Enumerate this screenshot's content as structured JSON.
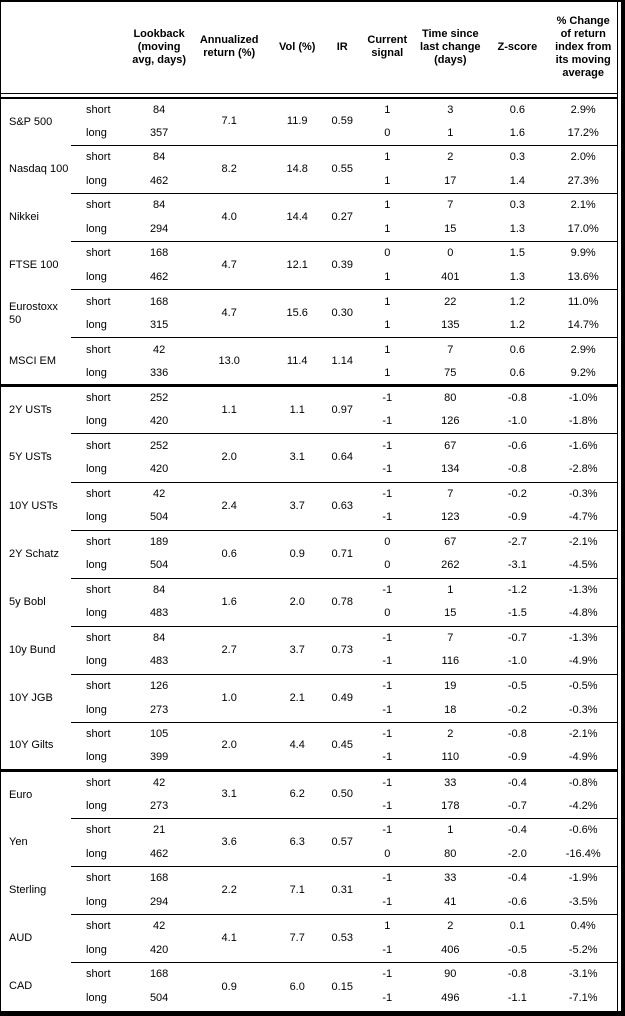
{
  "table": {
    "column_headers": [
      {
        "id": "asset",
        "label": ""
      },
      {
        "id": "horizon",
        "label": ""
      },
      {
        "id": "lookback",
        "label": "Lookback (moving avg, days)"
      },
      {
        "id": "annualized_return",
        "label": "Annualized return (%)"
      },
      {
        "id": "vol",
        "label": "Vol (%)"
      },
      {
        "id": "ir",
        "label": "IR"
      },
      {
        "id": "current_signal",
        "label": "Current signal"
      },
      {
        "id": "time_since",
        "label": "Time since last change (days)"
      },
      {
        "id": "zscore",
        "label": "Z-score"
      },
      {
        "id": "pct_change",
        "label": "% Change of return index from its moving average"
      }
    ],
    "sections": [
      {
        "name": "equities",
        "groups": [
          {
            "asset": "S&P 500",
            "annualized_return": "7.1",
            "vol": "11.9",
            "ir": "0.59",
            "rows": [
              {
                "horizon": "short",
                "lookback": "84",
                "signal": "1",
                "time_since": "3",
                "zscore": "0.6",
                "pct_change": "2.9%"
              },
              {
                "horizon": "long",
                "lookback": "357",
                "signal": "0",
                "time_since": "1",
                "zscore": "1.6",
                "pct_change": "17.2%"
              }
            ]
          },
          {
            "asset": "Nasdaq 100",
            "annualized_return": "8.2",
            "vol": "14.8",
            "ir": "0.55",
            "rows": [
              {
                "horizon": "short",
                "lookback": "84",
                "signal": "1",
                "time_since": "2",
                "zscore": "0.3",
                "pct_change": "2.0%"
              },
              {
                "horizon": "long",
                "lookback": "462",
                "signal": "1",
                "time_since": "17",
                "zscore": "1.4",
                "pct_change": "27.3%"
              }
            ]
          },
          {
            "asset": "Nikkei",
            "annualized_return": "4.0",
            "vol": "14.4",
            "ir": "0.27",
            "rows": [
              {
                "horizon": "short",
                "lookback": "84",
                "signal": "1",
                "time_since": "7",
                "zscore": "0.3",
                "pct_change": "2.1%"
              },
              {
                "horizon": "long",
                "lookback": "294",
                "signal": "1",
                "time_since": "15",
                "zscore": "1.3",
                "pct_change": "17.0%"
              }
            ]
          },
          {
            "asset": "FTSE 100",
            "annualized_return": "4.7",
            "vol": "12.1",
            "ir": "0.39",
            "rows": [
              {
                "horizon": "short",
                "lookback": "168",
                "signal": "0",
                "time_since": "0",
                "zscore": "1.5",
                "pct_change": "9.9%"
              },
              {
                "horizon": "long",
                "lookback": "462",
                "signal": "1",
                "time_since": "401",
                "zscore": "1.3",
                "pct_change": "13.6%"
              }
            ]
          },
          {
            "asset": "Eurostoxx 50",
            "annualized_return": "4.7",
            "vol": "15.6",
            "ir": "0.30",
            "rows": [
              {
                "horizon": "short",
                "lookback": "168",
                "signal": "1",
                "time_since": "22",
                "zscore": "1.2",
                "pct_change": "11.0%"
              },
              {
                "horizon": "long",
                "lookback": "315",
                "signal": "1",
                "time_since": "135",
                "zscore": "1.2",
                "pct_change": "14.7%"
              }
            ]
          },
          {
            "asset": "MSCI EM",
            "annualized_return": "13.0",
            "vol": "11.4",
            "ir": "1.14",
            "rows": [
              {
                "horizon": "short",
                "lookback": "42",
                "signal": "1",
                "time_since": "7",
                "zscore": "0.6",
                "pct_change": "2.9%"
              },
              {
                "horizon": "long",
                "lookback": "336",
                "signal": "1",
                "time_since": "75",
                "zscore": "0.6",
                "pct_change": "9.2%"
              }
            ]
          }
        ]
      },
      {
        "name": "bonds",
        "groups": [
          {
            "asset": "2Y USTs",
            "annualized_return": "1.1",
            "vol": "1.1",
            "ir": "0.97",
            "rows": [
              {
                "horizon": "short",
                "lookback": "252",
                "signal": "-1",
                "time_since": "80",
                "zscore": "-0.8",
                "pct_change": "-1.0%"
              },
              {
                "horizon": "long",
                "lookback": "420",
                "signal": "-1",
                "time_since": "126",
                "zscore": "-1.0",
                "pct_change": "-1.8%"
              }
            ]
          },
          {
            "asset": "5Y USTs",
            "annualized_return": "2.0",
            "vol": "3.1",
            "ir": "0.64",
            "rows": [
              {
                "horizon": "short",
                "lookback": "252",
                "signal": "-1",
                "time_since": "67",
                "zscore": "-0.6",
                "pct_change": "-1.6%"
              },
              {
                "horizon": "long",
                "lookback": "420",
                "signal": "-1",
                "time_since": "134",
                "zscore": "-0.8",
                "pct_change": "-2.8%"
              }
            ]
          },
          {
            "asset": "10Y USTs",
            "annualized_return": "2.4",
            "vol": "3.7",
            "ir": "0.63",
            "rows": [
              {
                "horizon": "short",
                "lookback": "42",
                "signal": "-1",
                "time_since": "7",
                "zscore": "-0.2",
                "pct_change": "-0.3%"
              },
              {
                "horizon": "long",
                "lookback": "504",
                "signal": "-1",
                "time_since": "123",
                "zscore": "-0.9",
                "pct_change": "-4.7%"
              }
            ]
          },
          {
            "asset": "2Y Schatz",
            "annualized_return": "0.6",
            "vol": "0.9",
            "ir": "0.71",
            "rows": [
              {
                "horizon": "short",
                "lookback": "189",
                "signal": "0",
                "time_since": "67",
                "zscore": "-2.7",
                "pct_change": "-2.1%"
              },
              {
                "horizon": "long",
                "lookback": "504",
                "signal": "0",
                "time_since": "262",
                "zscore": "-3.1",
                "pct_change": "-4.5%"
              }
            ]
          },
          {
            "asset": "5y Bobl",
            "annualized_return": "1.6",
            "vol": "2.0",
            "ir": "0.78",
            "rows": [
              {
                "horizon": "short",
                "lookback": "84",
                "signal": "-1",
                "time_since": "1",
                "zscore": "-1.2",
                "pct_change": "-1.3%"
              },
              {
                "horizon": "long",
                "lookback": "483",
                "signal": "0",
                "time_since": "15",
                "zscore": "-1.5",
                "pct_change": "-4.8%"
              }
            ]
          },
          {
            "asset": "10y Bund",
            "annualized_return": "2.7",
            "vol": "3.7",
            "ir": "0.73",
            "rows": [
              {
                "horizon": "short",
                "lookback": "84",
                "signal": "-1",
                "time_since": "7",
                "zscore": "-0.7",
                "pct_change": "-1.3%"
              },
              {
                "horizon": "long",
                "lookback": "483",
                "signal": "-1",
                "time_since": "116",
                "zscore": "-1.0",
                "pct_change": "-4.9%"
              }
            ]
          },
          {
            "asset": "10Y JGB",
            "annualized_return": "1.0",
            "vol": "2.1",
            "ir": "0.49",
            "rows": [
              {
                "horizon": "short",
                "lookback": "126",
                "signal": "-1",
                "time_since": "19",
                "zscore": "-0.5",
                "pct_change": "-0.5%"
              },
              {
                "horizon": "long",
                "lookback": "273",
                "signal": "-1",
                "time_since": "18",
                "zscore": "-0.2",
                "pct_change": "-0.3%"
              }
            ]
          },
          {
            "asset": "10Y Gilts",
            "annualized_return": "2.0",
            "vol": "4.4",
            "ir": "0.45",
            "rows": [
              {
                "horizon": "short",
                "lookback": "105",
                "signal": "-1",
                "time_since": "2",
                "zscore": "-0.8",
                "pct_change": "-2.1%"
              },
              {
                "horizon": "long",
                "lookback": "399",
                "signal": "-1",
                "time_since": "110",
                "zscore": "-0.9",
                "pct_change": "-4.9%"
              }
            ]
          }
        ]
      },
      {
        "name": "fx",
        "groups": [
          {
            "asset": "Euro",
            "annualized_return": "3.1",
            "vol": "6.2",
            "ir": "0.50",
            "rows": [
              {
                "horizon": "short",
                "lookback": "42",
                "signal": "-1",
                "time_since": "33",
                "zscore": "-0.4",
                "pct_change": "-0.8%"
              },
              {
                "horizon": "long",
                "lookback": "273",
                "signal": "-1",
                "time_since": "178",
                "zscore": "-0.7",
                "pct_change": "-4.2%"
              }
            ]
          },
          {
            "asset": "Yen",
            "annualized_return": "3.6",
            "vol": "6.3",
            "ir": "0.57",
            "rows": [
              {
                "horizon": "short",
                "lookback": "21",
                "signal": "-1",
                "time_since": "1",
                "zscore": "-0.4",
                "pct_change": "-0.6%"
              },
              {
                "horizon": "long",
                "lookback": "462",
                "signal": "0",
                "time_since": "80",
                "zscore": "-2.0",
                "pct_change": "-16.4%"
              }
            ]
          },
          {
            "asset": "Sterling",
            "annualized_return": "2.2",
            "vol": "7.1",
            "ir": "0.31",
            "rows": [
              {
                "horizon": "short",
                "lookback": "168",
                "signal": "-1",
                "time_since": "33",
                "zscore": "-0.4",
                "pct_change": "-1.9%"
              },
              {
                "horizon": "long",
                "lookback": "294",
                "signal": "-1",
                "time_since": "41",
                "zscore": "-0.6",
                "pct_change": "-3.5%"
              }
            ]
          },
          {
            "asset": "AUD",
            "annualized_return": "4.1",
            "vol": "7.7",
            "ir": "0.53",
            "rows": [
              {
                "horizon": "short",
                "lookback": "42",
                "signal": "1",
                "time_since": "2",
                "zscore": "0.1",
                "pct_change": "0.4%"
              },
              {
                "horizon": "long",
                "lookback": "420",
                "signal": "-1",
                "time_since": "406",
                "zscore": "-0.5",
                "pct_change": "-5.2%"
              }
            ]
          },
          {
            "asset": "CAD",
            "annualized_return": "0.9",
            "vol": "6.0",
            "ir": "0.15",
            "rows": [
              {
                "horizon": "short",
                "lookback": "168",
                "signal": "-1",
                "time_since": "90",
                "zscore": "-0.8",
                "pct_change": "-3.1%"
              },
              {
                "horizon": "long",
                "lookback": "504",
                "signal": "-1",
                "time_since": "496",
                "zscore": "-1.1",
                "pct_change": "-7.1%"
              }
            ]
          }
        ]
      }
    ]
  }
}
